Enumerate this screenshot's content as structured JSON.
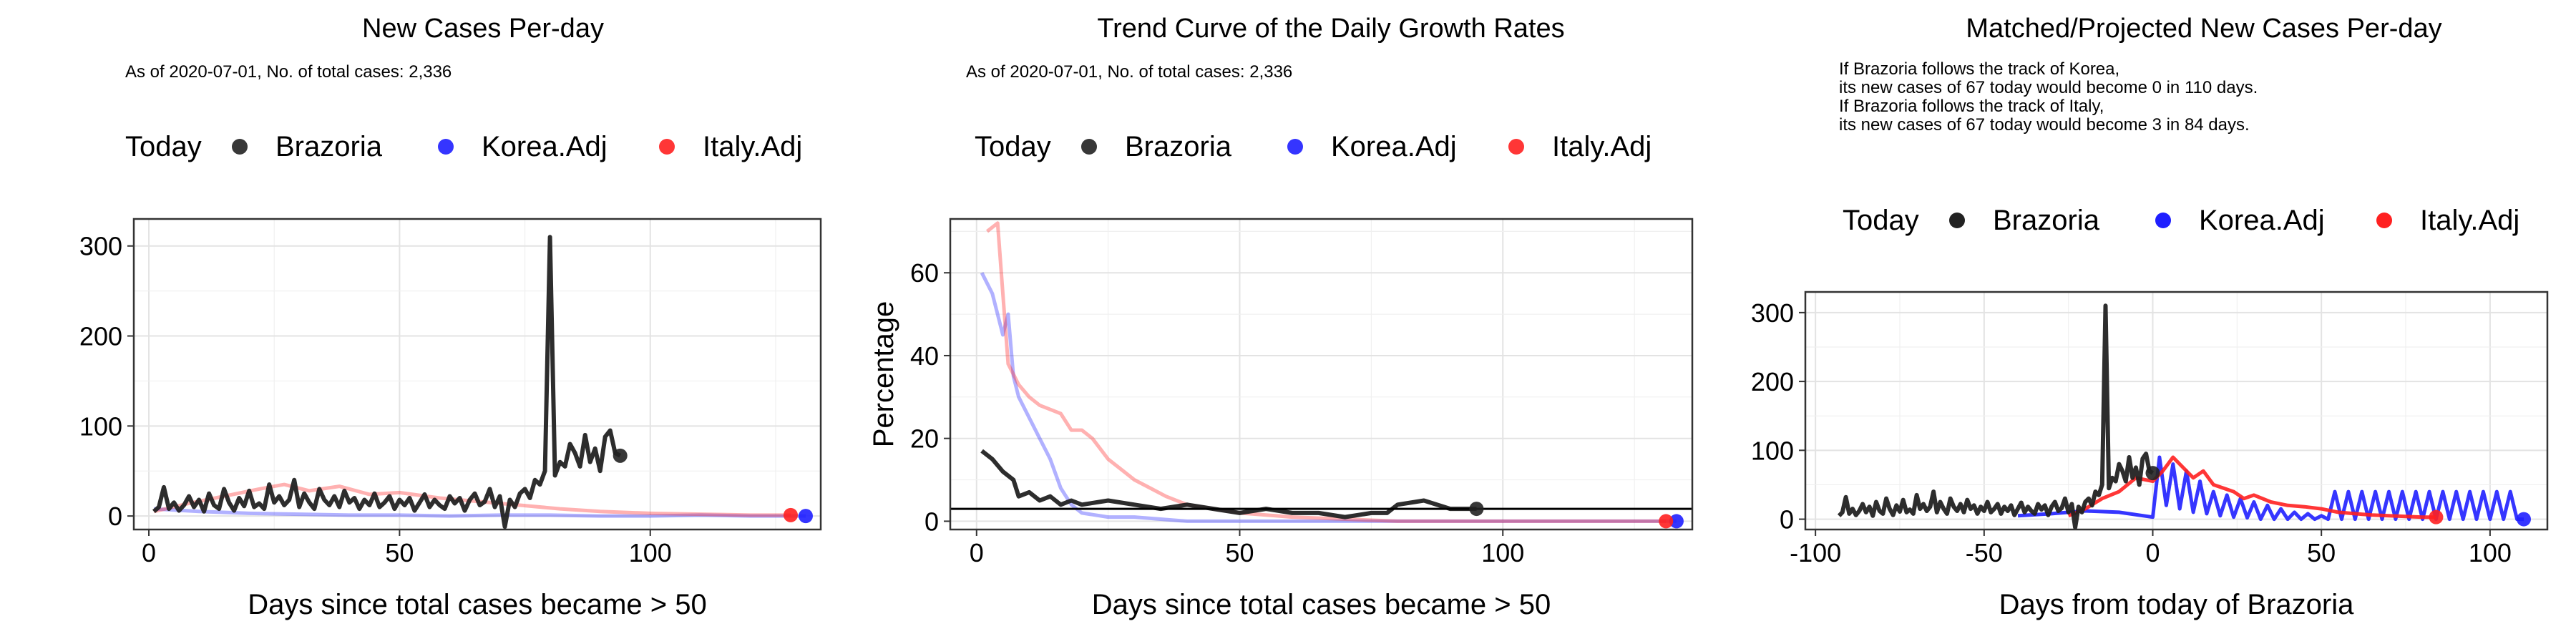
{
  "colors": {
    "brazoria": "#222222",
    "korea": "#1f1fff",
    "italy": "#ff2020"
  },
  "chart_data": [
    {
      "type": "line",
      "title": "New Cases Per-day",
      "subtitle": "As of 2020-07-01, No. of total cases: 2,336",
      "xlabel": "Days since total cases became > 50",
      "ylabel": "",
      "xlim": [
        -3,
        134
      ],
      "ylim": [
        -15,
        330
      ],
      "x_ticks": [
        0,
        50,
        100
      ],
      "y_ticks": [
        0,
        100,
        200,
        300
      ],
      "grid": true,
      "legend": {
        "placement": "top",
        "title": "Today",
        "entries": [
          "Brazoria",
          "Korea.Adj",
          "Italy.Adj"
        ]
      },
      "today_points": [
        {
          "series": "Brazoria",
          "x": 94,
          "y": 67
        },
        {
          "series": "Korea.Adj",
          "x": 131,
          "y": 0
        },
        {
          "series": "Italy.Adj",
          "x": 128,
          "y": 1
        }
      ],
      "series": [
        {
          "name": "Brazoria",
          "x": [
            1,
            2,
            3,
            4,
            5,
            6,
            7,
            8,
            9,
            10,
            11,
            12,
            13,
            14,
            15,
            16,
            17,
            18,
            19,
            20,
            21,
            22,
            23,
            24,
            25,
            26,
            27,
            28,
            29,
            30,
            31,
            32,
            33,
            34,
            35,
            36,
            37,
            38,
            39,
            40,
            41,
            42,
            43,
            44,
            45,
            46,
            47,
            48,
            49,
            50,
            51,
            52,
            53,
            54,
            55,
            56,
            57,
            58,
            59,
            60,
            61,
            62,
            63,
            64,
            65,
            66,
            67,
            68,
            69,
            70,
            71,
            72,
            73,
            74,
            75,
            76,
            77,
            78,
            79,
            80,
            81,
            82,
            83,
            84,
            85,
            86,
            87,
            88,
            89,
            90,
            91,
            92,
            93,
            94
          ],
          "y": [
            5,
            10,
            32,
            8,
            15,
            6,
            12,
            22,
            10,
            18,
            5,
            25,
            12,
            8,
            30,
            15,
            6,
            20,
            11,
            28,
            10,
            14,
            8,
            35,
            15,
            22,
            12,
            18,
            40,
            10,
            25,
            15,
            8,
            30,
            18,
            12,
            22,
            10,
            28,
            15,
            20,
            8,
            18,
            12,
            25,
            10,
            15,
            22,
            8,
            18,
            12,
            20,
            6,
            15,
            24,
            10,
            18,
            12,
            8,
            22,
            14,
            20,
            6,
            18,
            25,
            12,
            16,
            30,
            10,
            22,
            -12,
            18,
            10,
            25,
            30,
            20,
            40,
            35,
            50,
            310,
            45,
            60,
            55,
            80,
            70,
            55,
            90,
            60,
            75,
            50,
            88,
            95,
            70,
            67
          ]
        },
        {
          "name": "Korea.Adj",
          "x": [
            1,
            10,
            20,
            30,
            40,
            50,
            60,
            70,
            80,
            90,
            100,
            110,
            120,
            131
          ],
          "y": [
            8,
            5,
            3,
            2,
            1,
            1,
            0,
            1,
            1,
            0,
            0,
            1,
            0,
            0
          ]
        },
        {
          "name": "Italy.Adj",
          "x": [
            1,
            8,
            15,
            22,
            27,
            32,
            38,
            44,
            50,
            58,
            66,
            74,
            82,
            90,
            100,
            110,
            120,
            128
          ],
          "y": [
            5,
            14,
            22,
            30,
            35,
            28,
            33,
            24,
            26,
            20,
            16,
            12,
            8,
            5,
            3,
            2,
            1,
            1
          ]
        }
      ]
    },
    {
      "type": "line",
      "title": "Trend Curve of the Daily Growth Rates",
      "subtitle": "As of 2020-07-01, No. of total cases: 2,336",
      "xlabel": "Days since total cases became > 50",
      "ylabel": "Percentage",
      "xlim": [
        -5,
        136
      ],
      "ylim": [
        -2,
        73
      ],
      "x_ticks": [
        0,
        50,
        100
      ],
      "y_ticks": [
        0,
        20,
        40,
        60
      ],
      "grid": true,
      "reference_line": {
        "y": 3
      },
      "legend": {
        "placement": "top",
        "title": "Today",
        "entries": [
          "Brazoria",
          "Korea.Adj",
          "Italy.Adj"
        ]
      },
      "today_points": [
        {
          "series": "Brazoria",
          "x": 95,
          "y": 3
        },
        {
          "series": "Korea.Adj",
          "x": 133,
          "y": 0
        },
        {
          "series": "Italy.Adj",
          "x": 131,
          "y": 0
        }
      ],
      "series": [
        {
          "name": "Brazoria",
          "x": [
            1,
            3,
            5,
            7,
            8,
            10,
            12,
            14,
            16,
            18,
            20,
            25,
            30,
            35,
            40,
            45,
            50,
            55,
            60,
            65,
            70,
            75,
            78,
            80,
            85,
            90,
            95
          ],
          "y": [
            17,
            15,
            12,
            10,
            6,
            7,
            5,
            6,
            4,
            5,
            4,
            5,
            4,
            3,
            4,
            3,
            2,
            3,
            2,
            2,
            1,
            2,
            2,
            4,
            5,
            3,
            3
          ]
        },
        {
          "name": "Korea.Adj",
          "x": [
            1,
            3,
            5,
            6,
            7,
            8,
            10,
            12,
            14,
            16,
            18,
            20,
            25,
            30,
            40,
            50,
            60,
            80,
            100,
            120,
            133
          ],
          "y": [
            60,
            55,
            45,
            50,
            35,
            30,
            25,
            20,
            15,
            8,
            4,
            2,
            1,
            1,
            0,
            0,
            0,
            0,
            0,
            0,
            0
          ]
        },
        {
          "name": "Italy.Adj",
          "x": [
            2,
            4,
            5,
            6,
            8,
            10,
            12,
            14,
            16,
            18,
            20,
            22,
            25,
            28,
            30,
            33,
            36,
            40,
            45,
            50,
            60,
            80,
            100,
            120,
            131
          ],
          "y": [
            70,
            72,
            55,
            38,
            33,
            30,
            28,
            27,
            26,
            22,
            22,
            20,
            15,
            12,
            10,
            8,
            6,
            4,
            3,
            2,
            1,
            0,
            0,
            0,
            0
          ]
        }
      ]
    },
    {
      "type": "line",
      "title": "Matched/Projected New Cases Per-day",
      "annotation": [
        "If Brazoria follows the track of Korea,",
        "its new cases of 67 today would become 0 in 110 days.",
        "If Brazoria follows the track of Italy,",
        "its new cases of 67 today would become 3 in 84 days."
      ],
      "xlabel": "Days from today of Brazoria",
      "ylabel": "",
      "xlim": [
        -103,
        117
      ],
      "ylim": [
        -15,
        330
      ],
      "x_ticks": [
        -100,
        -50,
        0,
        50,
        100
      ],
      "y_ticks": [
        0,
        100,
        200,
        300
      ],
      "grid": true,
      "legend": {
        "placement": "top",
        "title": "Today",
        "entries": [
          "Brazoria",
          "Korea.Adj",
          "Italy.Adj"
        ]
      },
      "today_points": [
        {
          "series": "Brazoria",
          "x": 0,
          "y": 67
        },
        {
          "series": "Korea.Adj",
          "x": 110,
          "y": 0
        },
        {
          "series": "Italy.Adj",
          "x": 84,
          "y": 3
        }
      ],
      "series": [
        {
          "name": "Brazoria",
          "x": [
            -93,
            -92,
            -91,
            -90,
            -89,
            -88,
            -87,
            -86,
            -85,
            -84,
            -83,
            -82,
            -81,
            -80,
            -79,
            -78,
            -77,
            -76,
            -75,
            -74,
            -73,
            -72,
            -71,
            -70,
            -69,
            -68,
            -67,
            -66,
            -65,
            -64,
            -63,
            -62,
            -61,
            -60,
            -59,
            -58,
            -57,
            -56,
            -55,
            -54,
            -53,
            -52,
            -51,
            -50,
            -49,
            -48,
            -47,
            -46,
            -45,
            -44,
            -43,
            -42,
            -41,
            -40,
            -39,
            -38,
            -37,
            -36,
            -35,
            -34,
            -33,
            -32,
            -31,
            -30,
            -29,
            -28,
            -27,
            -26,
            -25,
            -24,
            -23,
            -22,
            -21,
            -20,
            -19,
            -18,
            -17,
            -16,
            -15,
            -14,
            -13,
            -12,
            -11,
            -10,
            -9,
            -8,
            -7,
            -6,
            -5,
            -4,
            -3,
            -2,
            -1,
            0
          ],
          "y": [
            5,
            10,
            32,
            8,
            15,
            6,
            12,
            22,
            10,
            18,
            5,
            25,
            12,
            8,
            30,
            15,
            6,
            20,
            11,
            28,
            10,
            14,
            8,
            35,
            15,
            22,
            12,
            18,
            40,
            10,
            25,
            15,
            8,
            30,
            18,
            12,
            22,
            10,
            28,
            15,
            20,
            8,
            18,
            12,
            25,
            10,
            15,
            22,
            8,
            18,
            12,
            20,
            6,
            15,
            24,
            10,
            18,
            12,
            8,
            22,
            14,
            20,
            6,
            18,
            25,
            12,
            16,
            30,
            10,
            22,
            -12,
            18,
            10,
            25,
            30,
            20,
            40,
            35,
            50,
            310,
            45,
            60,
            55,
            80,
            70,
            55,
            90,
            60,
            75,
            50,
            88,
            95,
            70,
            67
          ]
        },
        {
          "name": "Korea.Adj",
          "x": [
            -40,
            -30,
            -20,
            -10,
            0,
            2,
            4,
            6,
            8,
            10,
            12,
            14,
            16,
            18,
            20,
            22,
            24,
            26,
            28,
            30,
            32,
            34,
            36,
            38,
            40,
            42,
            44,
            46,
            48,
            50,
            52,
            54,
            56,
            58,
            60,
            62,
            64,
            66,
            68,
            70,
            72,
            74,
            76,
            78,
            80,
            82,
            84,
            86,
            88,
            90,
            92,
            94,
            96,
            98,
            100,
            102,
            104,
            106,
            108,
            110
          ],
          "y": [
            5,
            8,
            12,
            10,
            3,
            90,
            20,
            80,
            15,
            70,
            10,
            55,
            8,
            40,
            5,
            35,
            3,
            30,
            2,
            25,
            0,
            20,
            0,
            15,
            0,
            10,
            0,
            8,
            0,
            5,
            0,
            40,
            0,
            40,
            0,
            40,
            0,
            40,
            0,
            40,
            0,
            40,
            0,
            40,
            0,
            40,
            0,
            40,
            0,
            40,
            0,
            40,
            0,
            40,
            0,
            40,
            0,
            40,
            0,
            0
          ]
        },
        {
          "name": "Italy.Adj",
          "x": [
            -25,
            -20,
            -15,
            -10,
            -5,
            0,
            3,
            6,
            9,
            12,
            15,
            18,
            21,
            24,
            27,
            30,
            35,
            40,
            45,
            50,
            55,
            60,
            65,
            70,
            75,
            80,
            84
          ],
          "y": [
            5,
            15,
            30,
            40,
            60,
            55,
            70,
            90,
            75,
            60,
            70,
            50,
            45,
            40,
            30,
            35,
            25,
            20,
            18,
            15,
            10,
            8,
            6,
            5,
            4,
            3,
            3
          ]
        }
      ]
    }
  ]
}
